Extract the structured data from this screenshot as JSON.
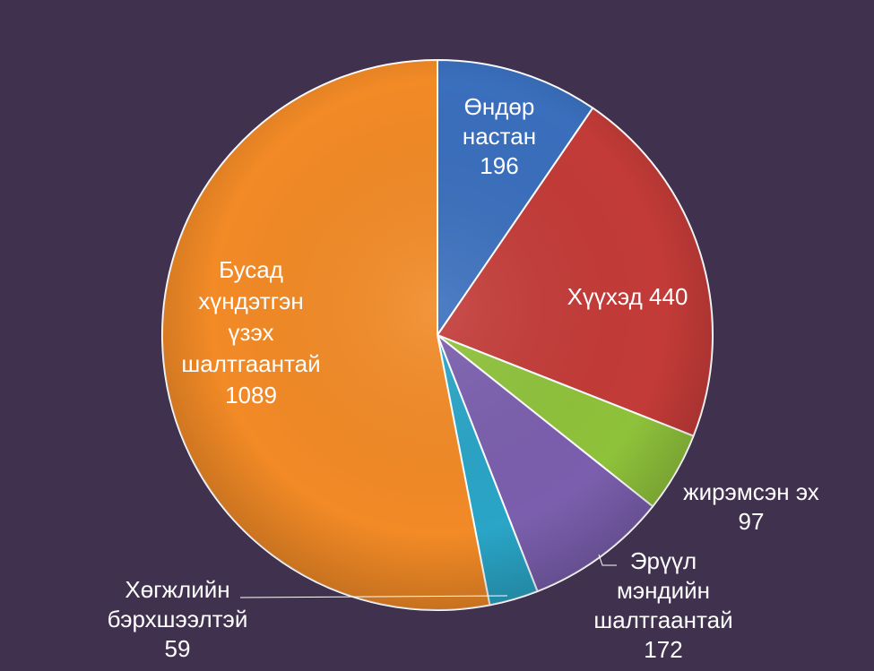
{
  "chart_data": {
    "type": "pie",
    "title": "",
    "legend": "none",
    "slices": [
      {
        "label": "Өндөр настан",
        "value": 196,
        "color": "#3a6fbd",
        "label_lines": [
          "Өндөр",
          "настан",
          "196"
        ]
      },
      {
        "label": "Хүүхэд",
        "value": 440,
        "color": "#c33b38",
        "label_lines": [
          "Хүүхэд 440"
        ]
      },
      {
        "label": "жирэмсэн эх",
        "value": 97,
        "color": "#8fc23b",
        "label_lines": [
          "жирэмсэн эх",
          "97"
        ]
      },
      {
        "label": "Эрүүл мэндийн шалтгаантай",
        "value": 172,
        "color": "#7b5fae",
        "label_lines": [
          "Эрүүл",
          "мэндийн",
          "шалтгаантай",
          "172"
        ]
      },
      {
        "label": "Хөгжлийн бэрхшээлтэй",
        "value": 59,
        "color": "#2aa5c7",
        "label_lines": [
          "Хөгжлийн",
          "бэрхшээлтэй",
          "59"
        ]
      },
      {
        "label": "Бусад хүндэтгэн үзэх шалтгаантай",
        "value": 1089,
        "color": "#f28a26",
        "label_lines": [
          "Бусад",
          "хүндэтгэн",
          "үзэх",
          "шалтгаантай",
          "1089"
        ]
      }
    ]
  }
}
